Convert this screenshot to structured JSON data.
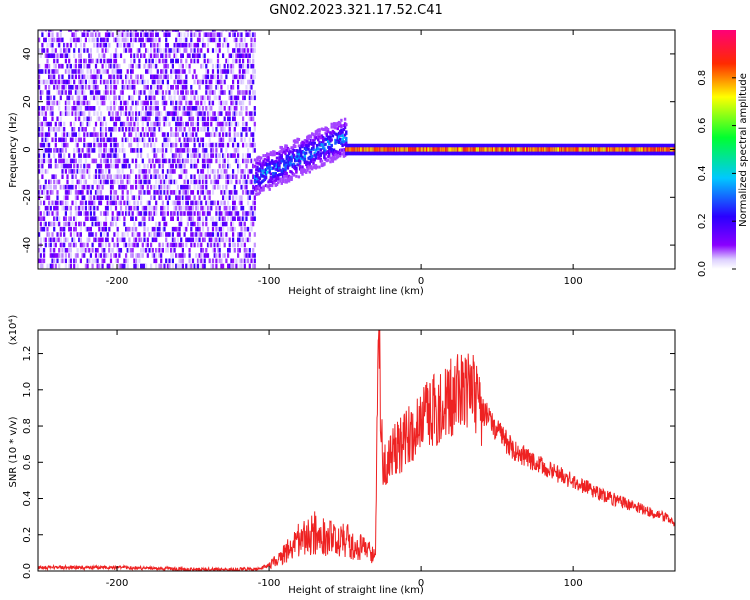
{
  "chart_data": [
    {
      "type": "heatmap",
      "title": "GN02.2023.321.17.52.C41",
      "xlabel": "Height of straight line (km)",
      "ylabel": "Frequency (Hz)",
      "xlim": [
        -252,
        167
      ],
      "ylim": [
        -50,
        50
      ],
      "x_ticks": [
        -200,
        -100,
        0,
        100
      ],
      "y_ticks": [
        -40,
        -20,
        0,
        20,
        40
      ],
      "colorbar": {
        "label": "Normalized spectral amplitude",
        "range": [
          0,
          1
        ],
        "ticks": [
          "0.0",
          "0.2",
          "0.4",
          "0.6",
          "0.8"
        ],
        "colors": [
          "#ffffff",
          "#7a00ff",
          "#2f00ff",
          "#00bfff",
          "#00ff40",
          "#ffff00",
          "#ff3300",
          "#ff0080"
        ]
      },
      "regions": [
        {
          "x": [
            -252,
            -110
          ],
          "freq_range": [
            -50,
            50
          ],
          "amplitude": 0.1,
          "pattern": "broadband noise"
        },
        {
          "x": [
            -110,
            -50
          ],
          "freq_center": [
            -12,
            5
          ],
          "freq_halfwidth": 8,
          "amplitude": 0.3
        },
        {
          "x": [
            -50,
            167
          ],
          "freq_center": 0,
          "freq_halfwidth": 1.5,
          "amplitude": 0.85
        }
      ]
    },
    {
      "type": "line",
      "xlabel": "Height of straight line (km)",
      "ylabel": "SNR (10 * v/v)",
      "y_multiplier": "(x10⁴)",
      "color": "#ee2222",
      "xlim": [
        -252,
        167
      ],
      "ylim": [
        0,
        1.33
      ],
      "x_ticks": [
        -200,
        -100,
        0,
        100
      ],
      "y_ticks": [
        "0.0",
        "0.2",
        "0.4",
        "0.6",
        "0.8",
        "1.0",
        "1.2"
      ],
      "x": [
        -252,
        -200,
        -150,
        -110,
        -100,
        -90,
        -80,
        -70,
        -60,
        -50,
        -40,
        -30,
        -28,
        -25,
        -22,
        -20,
        -15,
        -10,
        -5,
        0,
        10,
        20,
        25,
        30,
        35,
        40,
        50,
        60,
        80,
        100,
        120,
        140,
        160,
        167
      ],
      "y": [
        0.02,
        0.02,
        0.01,
        0.01,
        0.03,
        0.1,
        0.18,
        0.22,
        0.2,
        0.18,
        0.14,
        0.1,
        1.33,
        0.6,
        0.6,
        0.65,
        0.7,
        0.75,
        0.8,
        0.85,
        0.92,
        0.98,
        1.0,
        1.02,
        1.0,
        0.9,
        0.78,
        0.68,
        0.58,
        0.5,
        0.42,
        0.36,
        0.3,
        0.27
      ]
    }
  ]
}
